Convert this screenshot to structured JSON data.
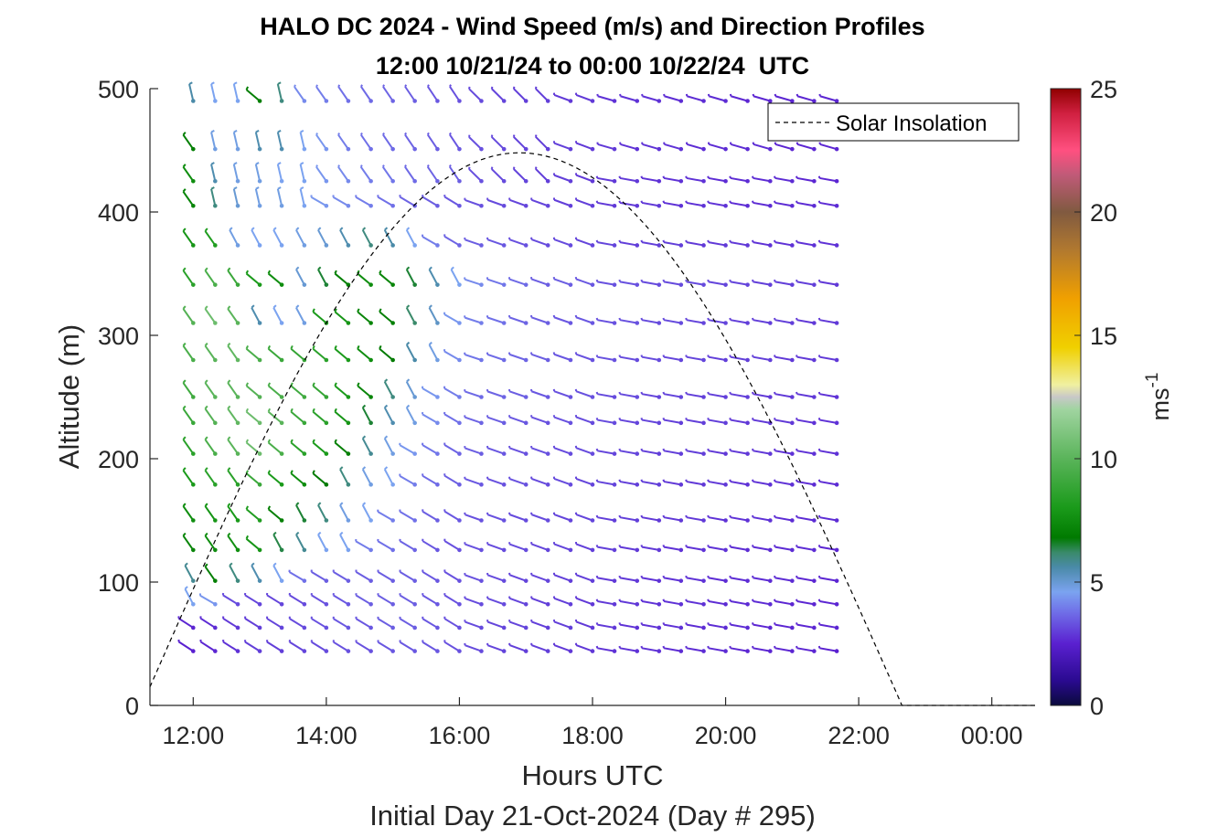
{
  "chart_data": {
    "type": "wind-barb",
    "title": "HALO DC 2024 - Wind Speed (m/s) and Direction Profiles",
    "subtitle": "12:00 10/21/24 to 00:00 10/22/24  UTC",
    "xlabel": "Hours UTC",
    "ylabel": "Altitude (m)",
    "footer": "Initial Day 21-Oct-2024 (Day # 295)",
    "xlim": [
      11.35,
      24.65
    ],
    "ylim": [
      0,
      500
    ],
    "xticks": [
      12,
      14,
      16,
      18,
      20,
      22,
      24
    ],
    "xticklabels": [
      "12:00",
      "14:00",
      "16:00",
      "18:00",
      "20:00",
      "22:00",
      "00:00"
    ],
    "yticks": [
      0,
      100,
      200,
      300,
      400,
      500
    ],
    "yticklabels": [
      "0",
      "100",
      "200",
      "300",
      "400",
      "500"
    ],
    "legend": {
      "entries": [
        "Solar Insolation"
      ],
      "placement": "top-right"
    },
    "colorbar": {
      "label": "ms",
      "label_superscript": "-1",
      "range": [
        0,
        25
      ],
      "ticks": [
        0,
        5,
        10,
        15,
        20,
        25
      ],
      "ticklabels": [
        "0",
        "5",
        "10",
        "15",
        "20",
        "25"
      ],
      "stops": [
        {
          "v": 0,
          "color": "#0a0a3c"
        },
        {
          "v": 1,
          "color": "#2a0a90"
        },
        {
          "v": 2.5,
          "color": "#5a20d0"
        },
        {
          "v": 3.8,
          "color": "#7070e8"
        },
        {
          "v": 4.6,
          "color": "#7ba3f0"
        },
        {
          "v": 5.6,
          "color": "#4a8aa8"
        },
        {
          "v": 6.2,
          "color": "#3a8a6a"
        },
        {
          "v": 6.8,
          "color": "#007a00"
        },
        {
          "v": 8,
          "color": "#1a9a1a"
        },
        {
          "v": 10,
          "color": "#5ab45a"
        },
        {
          "v": 12,
          "color": "#a0d4a0"
        },
        {
          "v": 12.5,
          "color": "#c8c8c8"
        },
        {
          "v": 13,
          "color": "#f0f0a0"
        },
        {
          "v": 14.5,
          "color": "#f0d000"
        },
        {
          "v": 16.5,
          "color": "#f0a000"
        },
        {
          "v": 18.5,
          "color": "#b07830"
        },
        {
          "v": 20,
          "color": "#805a40"
        },
        {
          "v": 21.5,
          "color": "#c05a78"
        },
        {
          "v": 22.5,
          "color": "#ff5080"
        },
        {
          "v": 24,
          "color": "#d02040"
        },
        {
          "v": 25,
          "color": "#900000"
        }
      ]
    },
    "times": [
      12.0,
      12.33,
      12.67,
      13.0,
      13.33,
      13.67,
      14.0,
      14.33,
      14.67,
      15.0,
      15.33,
      15.67,
      16.0,
      16.33,
      16.67,
      17.0,
      17.33,
      17.67,
      18.0,
      18.33,
      18.67,
      19.0,
      19.33,
      19.67,
      20.0,
      20.33,
      20.67,
      21.0,
      21.33,
      21.67
    ],
    "altitudes": [
      44,
      63,
      82,
      101,
      126,
      150,
      179,
      204,
      229,
      250,
      280,
      310,
      341,
      373,
      405,
      425,
      451,
      490
    ],
    "wind_regimes_note_free": true,
    "wind_field": {
      "speed_ms": [
        [
          2.5,
          2.6,
          2.8,
          3.0,
          3.0,
          3.1,
          3.2,
          3.3,
          3.3,
          3.4,
          3.4,
          3.4,
          3.3,
          3.2,
          3.1,
          3.0,
          3.0,
          2.9,
          2.9,
          2.8,
          2.8,
          2.8,
          2.7,
          2.7,
          2.7,
          2.6,
          2.6,
          2.6,
          2.6,
          2.5
        ],
        [
          2.6,
          2.7,
          2.9,
          3.0,
          3.1,
          3.2,
          3.3,
          3.4,
          3.4,
          3.5,
          3.5,
          3.4,
          3.3,
          3.2,
          3.1,
          3.1,
          3.0,
          3.0,
          2.9,
          2.9,
          2.8,
          2.8,
          2.8,
          2.7,
          2.7,
          2.7,
          2.6,
          2.6,
          2.6,
          2.6
        ],
        [
          4.6,
          4.4,
          3.2,
          3.1,
          3.1,
          3.2,
          3.3,
          3.4,
          3.5,
          3.5,
          3.5,
          3.4,
          3.3,
          3.2,
          3.2,
          3.1,
          3.0,
          3.0,
          2.9,
          2.9,
          2.9,
          2.8,
          2.8,
          2.8,
          2.7,
          2.7,
          2.7,
          2.6,
          2.6,
          2.6
        ],
        [
          5.8,
          7.0,
          6.0,
          5.5,
          4.6,
          3.8,
          3.5,
          3.5,
          3.5,
          3.5,
          3.5,
          3.4,
          3.3,
          3.3,
          3.2,
          3.1,
          3.1,
          3.0,
          3.0,
          2.9,
          2.9,
          2.8,
          2.8,
          2.8,
          2.7,
          2.7,
          2.7,
          2.7,
          2.6,
          2.6
        ],
        [
          7.2,
          7.5,
          7.6,
          7.8,
          6.4,
          5.8,
          4.6,
          4.6,
          4.0,
          3.8,
          3.6,
          3.4,
          3.3,
          3.3,
          3.2,
          3.2,
          3.1,
          3.1,
          3.0,
          3.0,
          2.9,
          2.9,
          2.8,
          2.8,
          2.8,
          2.7,
          2.7,
          2.7,
          2.7,
          2.6
        ],
        [
          7.5,
          7.8,
          8.0,
          8.2,
          7.0,
          6.5,
          6.0,
          4.8,
          4.6,
          4.0,
          3.8,
          3.5,
          3.4,
          3.3,
          3.3,
          3.2,
          3.2,
          3.1,
          3.1,
          3.0,
          3.0,
          2.9,
          2.9,
          2.9,
          2.8,
          2.8,
          2.8,
          2.7,
          2.7,
          2.7
        ],
        [
          8.0,
          8.5,
          8.5,
          9.0,
          8.0,
          7.5,
          6.8,
          6.0,
          4.8,
          4.6,
          4.0,
          3.7,
          3.5,
          3.4,
          3.3,
          3.3,
          3.2,
          3.2,
          3.1,
          3.1,
          3.0,
          3.0,
          2.9,
          2.9,
          2.9,
          2.8,
          2.8,
          2.8,
          2.7,
          2.7
        ],
        [
          8.5,
          9.5,
          10.0,
          10.5,
          9.5,
          8.5,
          8.0,
          7.0,
          5.8,
          4.8,
          4.4,
          3.9,
          3.6,
          3.5,
          3.4,
          3.3,
          3.3,
          3.2,
          3.2,
          3.1,
          3.1,
          3.0,
          3.0,
          3.0,
          2.9,
          2.9,
          2.9,
          2.8,
          2.8,
          2.8
        ],
        [
          9.0,
          9.8,
          10.2,
          10.5,
          10.0,
          9.0,
          8.5,
          7.8,
          6.5,
          5.5,
          4.8,
          4.2,
          3.8,
          3.6,
          3.5,
          3.4,
          3.3,
          3.3,
          3.2,
          3.2,
          3.1,
          3.1,
          3.0,
          3.0,
          3.0,
          2.9,
          2.9,
          2.9,
          2.8,
          2.8
        ],
        [
          9.2,
          10.0,
          10.0,
          9.8,
          9.5,
          9.2,
          8.8,
          8.0,
          7.2,
          6.0,
          5.0,
          4.4,
          4.0,
          3.7,
          3.6,
          3.5,
          3.4,
          3.3,
          3.3,
          3.2,
          3.2,
          3.1,
          3.1,
          3.0,
          3.0,
          3.0,
          2.9,
          2.9,
          2.9,
          2.8
        ],
        [
          9.5,
          10.0,
          10.2,
          9.5,
          9.0,
          8.8,
          8.5,
          8.0,
          7.5,
          6.8,
          5.6,
          4.8,
          4.2,
          3.9,
          3.7,
          3.6,
          3.5,
          3.4,
          3.3,
          3.3,
          3.2,
          3.2,
          3.1,
          3.1,
          3.0,
          3.0,
          3.0,
          2.9,
          2.9,
          2.9
        ],
        [
          9.8,
          10.5,
          10.0,
          5.5,
          4.6,
          4.8,
          8.0,
          7.8,
          7.2,
          7.0,
          6.2,
          5.2,
          4.4,
          4.0,
          3.8,
          3.6,
          3.5,
          3.4,
          3.4,
          3.3,
          3.3,
          3.2,
          3.2,
          3.1,
          3.1,
          3.0,
          3.0,
          3.0,
          2.9,
          2.9
        ],
        [
          8.5,
          9.5,
          9.0,
          8.0,
          7.5,
          5.0,
          6.5,
          7.0,
          7.5,
          7.2,
          6.5,
          5.5,
          4.6,
          4.2,
          3.9,
          3.7,
          3.5,
          3.5,
          3.4,
          3.3,
          3.3,
          3.2,
          3.2,
          3.2,
          3.1,
          3.1,
          3.0,
          3.0,
          3.0,
          2.9
        ],
        [
          7.8,
          8.2,
          4.8,
          4.6,
          4.6,
          4.8,
          5.0,
          5.5,
          6.0,
          5.6,
          4.6,
          4.0,
          3.6,
          3.5,
          3.4,
          3.3,
          3.2,
          3.2,
          3.1,
          3.1,
          3.0,
          3.0,
          3.0,
          2.9,
          2.9,
          2.9,
          2.8,
          2.8,
          2.8,
          2.8
        ],
        [
          7.2,
          6.0,
          5.0,
          4.8,
          4.8,
          4.6,
          4.4,
          4.2,
          4.0,
          3.8,
          3.6,
          3.5,
          3.4,
          3.3,
          3.2,
          3.1,
          3.1,
          3.0,
          3.0,
          2.9,
          2.9,
          2.9,
          2.8,
          2.8,
          2.8,
          2.7,
          2.7,
          2.7,
          2.7,
          2.7
        ],
        [
          7.5,
          5.5,
          4.8,
          4.8,
          4.6,
          4.6,
          4.4,
          4.2,
          4.0,
          3.9,
          3.7,
          3.6,
          3.5,
          3.3,
          3.2,
          3.1,
          3.0,
          3.0,
          2.9,
          2.9,
          2.9,
          2.8,
          2.8,
          2.8,
          2.7,
          2.7,
          2.7,
          2.7,
          2.6,
          2.6
        ],
        [
          7.0,
          4.8,
          4.8,
          5.5,
          5.5,
          4.6,
          4.4,
          4.0,
          3.8,
          3.7,
          3.6,
          3.5,
          3.4,
          3.3,
          3.2,
          3.1,
          3.0,
          3.0,
          2.9,
          2.9,
          2.8,
          2.8,
          2.8,
          2.7,
          2.7,
          2.7,
          2.7,
          2.6,
          2.6,
          2.6
        ],
        [
          5.6,
          4.6,
          4.6,
          7.0,
          6.0,
          4.2,
          4.0,
          3.8,
          3.7,
          3.6,
          3.5,
          3.4,
          3.3,
          3.2,
          3.1,
          3.0,
          3.0,
          2.9,
          2.9,
          2.8,
          2.8,
          2.8,
          2.7,
          2.7,
          2.7,
          2.6,
          2.6,
          2.6,
          2.6,
          2.6
        ]
      ]
    },
    "solar_insolation": {
      "curve": "sine",
      "start_hour": 11.35,
      "end_hour": 22.65,
      "peak_hour": 16.9,
      "start_value_m": 15,
      "peak_value_m": 448,
      "after_value_m": 0
    }
  }
}
